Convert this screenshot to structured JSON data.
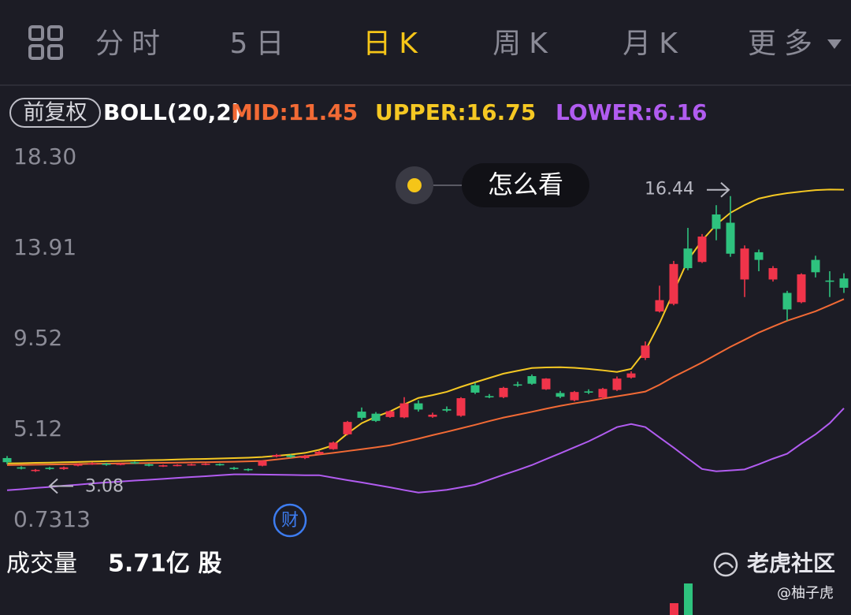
{
  "tabs": [
    {
      "label": "分时",
      "active": false
    },
    {
      "label": "5日",
      "active": false
    },
    {
      "label": "日K",
      "active": true
    },
    {
      "label": "周K",
      "active": false
    },
    {
      "label": "月K",
      "active": false
    },
    {
      "label": "更多",
      "active": false
    }
  ],
  "chart_data": {
    "type": "candlestick",
    "adjust_label": "前复权",
    "indicator": "BOLL(20,2)",
    "up_color": "#f0344a",
    "down_color": "#2ec27e",
    "ylim": [
      0.7313,
      18.3
    ],
    "yticks": [
      {
        "value": 18.3,
        "label": "18.30"
      },
      13.91,
      9.52,
      5.12,
      0.7313
    ],
    "grid": false,
    "ohlc": {
      "open": [
        3.75,
        3.3,
        3.12,
        3.28,
        3.22,
        3.38,
        3.45,
        3.48,
        3.42,
        3.55,
        3.45,
        3.35,
        3.38,
        3.4,
        3.42,
        3.46,
        3.28,
        3.22,
        3.38,
        3.82,
        3.88,
        3.75,
        3.95,
        4.18,
        4.9,
        6.0,
        5.9,
        5.74,
        5.72,
        6.4,
        5.75,
        6.12,
        5.8,
        7.28,
        6.75,
        6.7,
        7.32,
        7.72,
        7.08,
        6.9,
        6.55,
        6.98,
        6.68,
        7.05,
        7.65,
        8.6,
        10.85,
        11.22,
        13.9,
        13.25,
        15.55,
        15.15,
        12.4,
        13.72,
        12.4,
        11.75,
        11.3,
        13.35,
        12.35,
        12.45
      ],
      "high": [
        3.85,
        3.35,
        3.22,
        3.32,
        3.34,
        3.5,
        3.55,
        3.52,
        3.52,
        3.58,
        3.48,
        3.43,
        3.45,
        3.48,
        3.5,
        3.49,
        3.32,
        3.25,
        3.65,
        3.95,
        3.92,
        3.9,
        4.1,
        4.55,
        5.55,
        6.2,
        5.98,
        6.06,
        6.7,
        6.55,
        5.95,
        6.25,
        6.7,
        7.4,
        6.85,
        7.2,
        7.45,
        7.8,
        7.62,
        7.0,
        7.0,
        7.08,
        7.15,
        7.7,
        7.95,
        9.4,
        12.1,
        13.3,
        14.9,
        14.6,
        16.0,
        16.44,
        14.05,
        13.85,
        13.05,
        11.85,
        12.7,
        13.55,
        12.8,
        12.7
      ],
      "low": [
        3.45,
        3.2,
        3.08,
        3.18,
        3.18,
        3.35,
        3.42,
        3.38,
        3.4,
        3.46,
        3.35,
        3.32,
        3.35,
        3.38,
        3.4,
        3.38,
        3.18,
        3.12,
        3.35,
        3.78,
        3.75,
        3.7,
        3.92,
        4.15,
        4.85,
        5.6,
        5.5,
        5.7,
        5.68,
        6.0,
        5.7,
        5.98,
        5.75,
        6.85,
        6.65,
        6.65,
        7.2,
        7.3,
        7.05,
        6.65,
        6.5,
        6.85,
        6.6,
        7.0,
        7.6,
        8.5,
        10.8,
        11.15,
        12.85,
        13.2,
        14.3,
        13.5,
        11.55,
        12.8,
        12.3,
        10.4,
        11.25,
        12.5,
        11.55,
        11.75
      ],
      "close": [
        3.55,
        3.25,
        3.18,
        3.22,
        3.3,
        3.45,
        3.5,
        3.42,
        3.48,
        3.5,
        3.38,
        3.4,
        3.42,
        3.45,
        3.48,
        3.41,
        3.22,
        3.18,
        3.62,
        3.9,
        3.8,
        3.85,
        4.05,
        4.5,
        5.5,
        5.7,
        5.55,
        6.02,
        6.4,
        6.1,
        5.85,
        6.05,
        6.65,
        6.92,
        6.7,
        7.15,
        7.28,
        7.35,
        7.6,
        6.72,
        6.95,
        6.92,
        7.1,
        7.6,
        7.85,
        9.2,
        11.4,
        13.15,
        12.95,
        14.48,
        14.85,
        13.65,
        13.9,
        13.35,
        12.95,
        10.95,
        12.65,
        12.75,
        12.3,
        12.0
      ]
    },
    "series": [
      {
        "name": "MID:11.45",
        "color": "#f26a35",
        "values": [
          3.41,
          3.42,
          3.43,
          3.44,
          3.45,
          3.46,
          3.47,
          3.48,
          3.49,
          3.5,
          3.51,
          3.52,
          3.53,
          3.54,
          3.55,
          3.56,
          3.57,
          3.59,
          3.61,
          3.68,
          3.76,
          3.84,
          3.92,
          4.0,
          4.09,
          4.18,
          4.27,
          4.37,
          4.53,
          4.69,
          4.86,
          5.02,
          5.19,
          5.36,
          5.54,
          5.71,
          5.85,
          5.99,
          6.14,
          6.28,
          6.4,
          6.51,
          6.63,
          6.74,
          6.85,
          6.97,
          7.3,
          7.69,
          8.03,
          8.38,
          8.76,
          9.14,
          9.48,
          9.83,
          10.12,
          10.4,
          10.63,
          10.86,
          11.15,
          11.45
        ]
      },
      {
        "name": "UPPER:16.75",
        "color": "#f5c823",
        "values": [
          3.49,
          3.5,
          3.52,
          3.53,
          3.55,
          3.56,
          3.58,
          3.6,
          3.61,
          3.63,
          3.65,
          3.66,
          3.68,
          3.7,
          3.71,
          3.73,
          3.75,
          3.77,
          3.8,
          3.86,
          3.92,
          4.0,
          4.15,
          4.37,
          4.94,
          5.44,
          5.75,
          6.01,
          6.35,
          6.66,
          6.8,
          6.96,
          7.2,
          7.42,
          7.63,
          7.84,
          7.98,
          8.11,
          8.14,
          8.15,
          8.12,
          8.07,
          8.0,
          7.92,
          8.07,
          8.95,
          10.28,
          11.81,
          13.34,
          14.29,
          15.06,
          15.63,
          16.01,
          16.32,
          16.47,
          16.58,
          16.66,
          16.73,
          16.76,
          16.75
        ]
      },
      {
        "name": "LOWER:6.16",
        "color": "#b15cf0",
        "values": [
          2.19,
          2.24,
          2.3,
          2.35,
          2.41,
          2.46,
          2.52,
          2.57,
          2.61,
          2.66,
          2.7,
          2.74,
          2.79,
          2.83,
          2.87,
          2.92,
          2.96,
          2.96,
          2.95,
          2.94,
          2.93,
          2.92,
          2.92,
          2.8,
          2.68,
          2.57,
          2.45,
          2.33,
          2.2,
          2.08,
          2.14,
          2.21,
          2.33,
          2.46,
          2.7,
          2.94,
          3.17,
          3.41,
          3.7,
          3.98,
          4.27,
          4.56,
          4.9,
          5.25,
          5.4,
          5.25,
          4.75,
          4.25,
          3.73,
          3.22,
          3.11,
          3.15,
          3.2,
          3.45,
          3.72,
          3.96,
          4.45,
          4.9,
          5.44,
          6.16
        ]
      }
    ],
    "high_label": 16.44,
    "low_label": 3.08,
    "guide_button": "怎么看",
    "event_icon": "财",
    "volume_label": "成交量",
    "volume_value": "5.71亿 股"
  },
  "watermark": "老虎社区",
  "author": "@柚子虎"
}
